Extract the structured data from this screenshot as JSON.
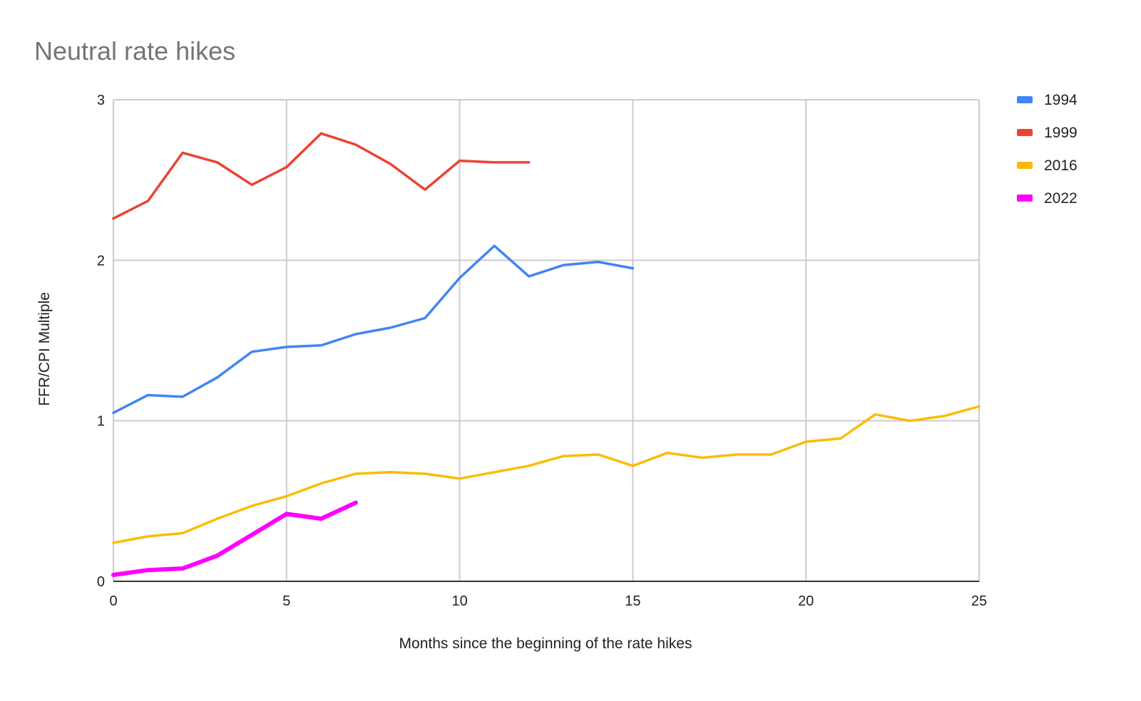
{
  "chart_data": {
    "type": "line",
    "title": "Neutral rate hikes",
    "xlabel": "Months since the beginning of the rate hikes",
    "ylabel": "FFR/CPI Multiple",
    "xlim": [
      0,
      25
    ],
    "ylim": [
      0,
      3
    ],
    "x_ticks": [
      "0",
      "5",
      "10",
      "15",
      "20",
      "25"
    ],
    "y_ticks": [
      "0",
      "1",
      "2",
      "3"
    ],
    "grid": true,
    "legend_position": "right",
    "series": [
      {
        "name": "1994",
        "color": "#4285f4",
        "x": [
          0,
          1,
          2,
          3,
          4,
          5,
          6,
          7,
          8,
          9,
          10,
          11,
          12,
          13,
          14,
          15
        ],
        "values": [
          1.05,
          1.16,
          1.15,
          1.27,
          1.43,
          1.46,
          1.47,
          1.54,
          1.58,
          1.64,
          1.89,
          2.09,
          1.9,
          1.97,
          1.99,
          1.95
        ]
      },
      {
        "name": "1999",
        "color": "#ea4335",
        "x": [
          0,
          1,
          2,
          3,
          4,
          5,
          6,
          7,
          8,
          9,
          10,
          11,
          12
        ],
        "values": [
          2.26,
          2.37,
          2.67,
          2.61,
          2.47,
          2.58,
          2.79,
          2.72,
          2.6,
          2.44,
          2.62,
          2.61,
          2.61
        ]
      },
      {
        "name": "2016",
        "color": "#fbbc04",
        "x": [
          0,
          1,
          2,
          3,
          4,
          5,
          6,
          7,
          8,
          9,
          10,
          11,
          12,
          13,
          14,
          15,
          16,
          17,
          18,
          19,
          20,
          21,
          22,
          23,
          24,
          25
        ],
        "values": [
          0.24,
          0.28,
          0.3,
          0.39,
          0.47,
          0.53,
          0.61,
          0.67,
          0.68,
          0.67,
          0.64,
          0.68,
          0.72,
          0.78,
          0.79,
          0.72,
          0.8,
          0.77,
          0.79,
          0.79,
          0.87,
          0.89,
          1.04,
          1.0,
          1.03,
          1.09
        ]
      },
      {
        "name": "2022",
        "color": "#ff00ff",
        "x": [
          0,
          1,
          2,
          3,
          4,
          5,
          6,
          7
        ],
        "values": [
          0.04,
          0.07,
          0.08,
          0.16,
          0.29,
          0.42,
          0.39,
          0.49
        ]
      }
    ]
  }
}
